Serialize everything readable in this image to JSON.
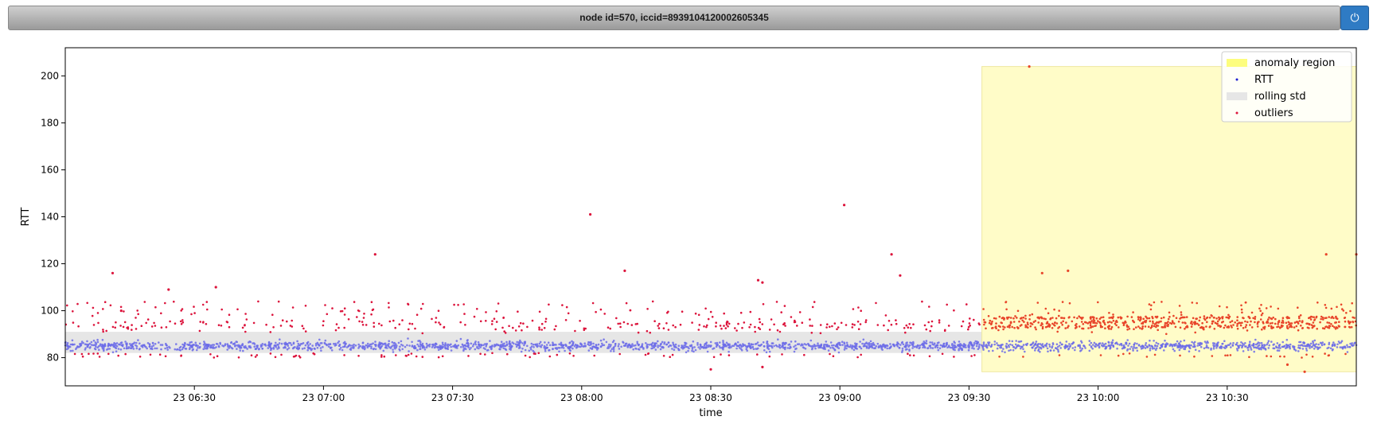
{
  "header": {
    "title": "node id=570, iccid=8939104120002605345",
    "power_icon": "power-icon"
  },
  "colors": {
    "rtt": "#6b6be8",
    "outliers": "#dc143c",
    "outliers_in_anomaly": "#e8452a",
    "anomaly_region": "#fffcc8",
    "anomaly_legend": "#fdfd7e",
    "rolling_std": "#e6e6e6"
  },
  "chart_data": {
    "type": "scatter",
    "title": "",
    "xlabel": "time",
    "ylabel": "RTT",
    "x_range": [
      "2024-01-23T06:00",
      "2024-01-23T11:00"
    ],
    "ylim": [
      68,
      212
    ],
    "y_ticks": [
      80,
      100,
      120,
      140,
      160,
      180,
      200
    ],
    "x_ticks": [
      {
        "t": "2024-01-23T06:30",
        "label": "23 06:30"
      },
      {
        "t": "2024-01-23T07:00",
        "label": "23 07:00"
      },
      {
        "t": "2024-01-23T07:30",
        "label": "23 07:30"
      },
      {
        "t": "2024-01-23T08:00",
        "label": "23 08:00"
      },
      {
        "t": "2024-01-23T08:30",
        "label": "23 08:30"
      },
      {
        "t": "2024-01-23T09:00",
        "label": "23 09:00"
      },
      {
        "t": "2024-01-23T09:30",
        "label": "23 09:30"
      },
      {
        "t": "2024-01-23T10:00",
        "label": "23 10:00"
      },
      {
        "t": "2024-01-23T10:30",
        "label": "23 10:30"
      }
    ],
    "grid": false,
    "legend_position": "top-right",
    "legend": [
      "anomaly region",
      "RTT",
      "rolling std",
      "outliers"
    ],
    "anomaly_region": {
      "x_start": "2024-01-23T09:33",
      "x_end": "2024-01-23T11:00",
      "y_range": [
        74,
        204
      ]
    },
    "rolling_std": {
      "y_range": [
        82,
        91
      ]
    },
    "rtt_band": {
      "center": 85,
      "spread": 2
    },
    "outliers": [
      {
        "t": "2024-01-23T06:11",
        "y": 116
      },
      {
        "t": "2024-01-23T06:13",
        "y": 100
      },
      {
        "t": "2024-01-23T06:24",
        "y": 109
      },
      {
        "t": "2024-01-23T06:35",
        "y": 110
      },
      {
        "t": "2024-01-23T07:12",
        "y": 124
      },
      {
        "t": "2024-01-23T08:02",
        "y": 141
      },
      {
        "t": "2024-01-23T08:10",
        "y": 117
      },
      {
        "t": "2024-01-23T08:30",
        "y": 75
      },
      {
        "t": "2024-01-23T08:41",
        "y": 113
      },
      {
        "t": "2024-01-23T08:42",
        "y": 112
      },
      {
        "t": "2024-01-23T08:42",
        "y": 76
      },
      {
        "t": "2024-01-23T09:01",
        "y": 145
      },
      {
        "t": "2024-01-23T09:12",
        "y": 124
      },
      {
        "t": "2024-01-23T09:14",
        "y": 115
      },
      {
        "t": "2024-01-23T09:44",
        "y": 204
      },
      {
        "t": "2024-01-23T09:47",
        "y": 116
      },
      {
        "t": "2024-01-23T09:53",
        "y": 117
      },
      {
        "t": "2024-01-23T10:44",
        "y": 77
      },
      {
        "t": "2024-01-23T10:48",
        "y": 74
      },
      {
        "t": "2024-01-23T10:53",
        "y": 124
      },
      {
        "t": "2024-01-23T11:00",
        "y": 124
      }
    ]
  }
}
